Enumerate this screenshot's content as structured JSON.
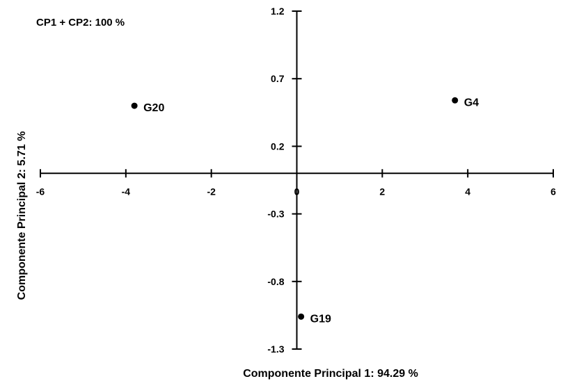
{
  "chart_data": {
    "type": "scatter",
    "annotation": "CP1 + CP2: 100 %",
    "xlabel": "Componente Principal 1: 94.29 %",
    "ylabel": "Componente Principal 2: 5.71 %",
    "xlim": [
      -6,
      6
    ],
    "ylim": [
      -1.3,
      1.2
    ],
    "x_ticks": [
      -6,
      -4,
      -2,
      0,
      2,
      4,
      6
    ],
    "y_ticks": [
      -1.3,
      -0.8,
      -0.3,
      0.2,
      0.7,
      1.2
    ],
    "x_tick_labels": [
      "-6",
      "-4",
      "-2",
      "0",
      "2",
      "4",
      "6"
    ],
    "y_tick_labels": [
      "-1.3",
      "-0.8",
      "-0.3",
      "0.2",
      "0.7",
      "1.2"
    ],
    "grid": false,
    "legend": "none",
    "marker_color": "#000000",
    "points": [
      {
        "label": "G20",
        "x": -3.8,
        "y": 0.5
      },
      {
        "label": "G4",
        "x": 3.7,
        "y": 0.54
      },
      {
        "label": "G19",
        "x": 0.1,
        "y": -1.06
      }
    ]
  }
}
